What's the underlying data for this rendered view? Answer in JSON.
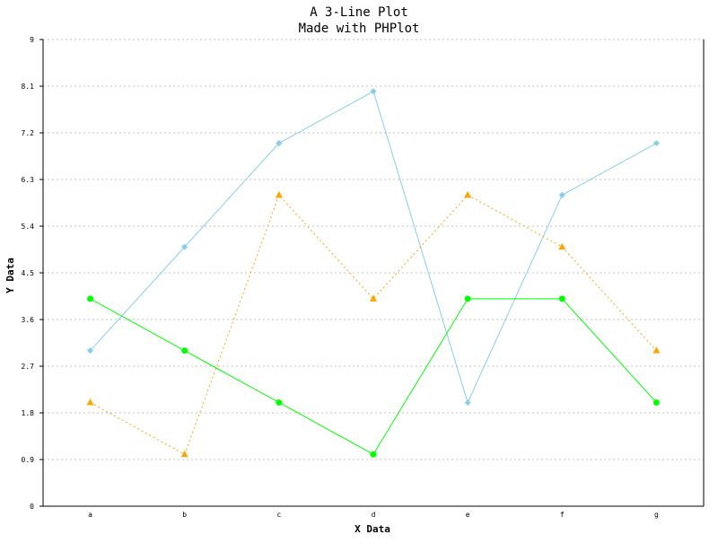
{
  "chart_data": {
    "type": "line",
    "title": "A 3-Line Plot",
    "subtitle": "Made with PHPlot",
    "xlabel": "X Data",
    "ylabel": "Y Data",
    "categories": [
      "a",
      "b",
      "c",
      "d",
      "e",
      "f",
      "g"
    ],
    "ylim": [
      0,
      9
    ],
    "yticks": [
      "0",
      "0.9",
      "1.8",
      "2.7",
      "3.6",
      "4.5",
      "5.4",
      "6.3",
      "7.2",
      "8.1",
      "9"
    ],
    "grid": true,
    "series": [
      {
        "values": [
          3,
          5,
          7,
          8,
          2,
          6,
          7
        ],
        "color": "#87ceeb",
        "marker": "diamond",
        "line_style": "solid"
      },
      {
        "values": [
          2,
          1,
          6,
          4,
          6,
          5,
          3
        ],
        "color": "#ffa500",
        "marker": "triangle",
        "line_style": "dashed"
      },
      {
        "values": [
          4,
          3,
          2,
          1,
          4,
          4,
          2
        ],
        "color": "#00ff00",
        "marker": "circle",
        "line_style": "solid"
      }
    ],
    "colors": {
      "grid": "#c0c0c0",
      "axis": "#000000",
      "background": "#ffffff"
    }
  }
}
